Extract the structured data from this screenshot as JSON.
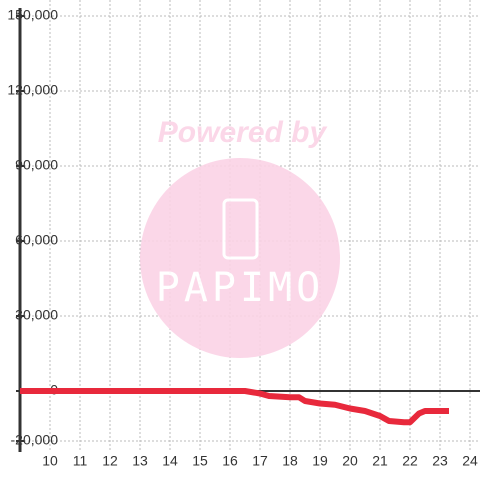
{
  "chart_data": {
    "type": "line",
    "x": [
      9,
      10,
      11,
      12,
      13,
      14,
      15,
      16,
      16.5,
      17,
      17.3,
      18,
      18.3,
      18.5,
      19,
      19.5,
      20,
      20.5,
      21,
      21.3,
      21.8,
      22,
      22.3,
      22.5,
      23.3
    ],
    "series": [
      {
        "color": "#e8293c",
        "values": [
          0,
          0,
          0,
          0,
          0,
          0,
          0,
          0,
          0,
          -1000,
          -2000,
          -2500,
          -2500,
          -4000,
          -5000,
          -5500,
          -7000,
          -8000,
          -10000,
          -12000,
          -12500,
          -12500,
          -9000,
          -8000,
          -8000
        ]
      }
    ],
    "xlim": [
      9,
      24.25
    ],
    "ylim": [
      -20000,
      150000
    ],
    "xticks": [
      10,
      11,
      12,
      13,
      14,
      15,
      16,
      17,
      18,
      19,
      20,
      21,
      22,
      23,
      24
    ],
    "yticks": [
      {
        "value": -20000,
        "label": "-20,000"
      },
      0,
      {
        "value": 30000,
        "label": "30,000"
      },
      {
        "value": 60000,
        "label": "60,000"
      },
      {
        "value": 90000,
        "label": "90,000"
      },
      {
        "value": 120000,
        "label": "120,000"
      },
      {
        "value": 150000,
        "label": "150,000"
      }
    ],
    "grid": true,
    "watermark": {
      "line1": "Powered by",
      "line2": "PAPIMO"
    }
  }
}
